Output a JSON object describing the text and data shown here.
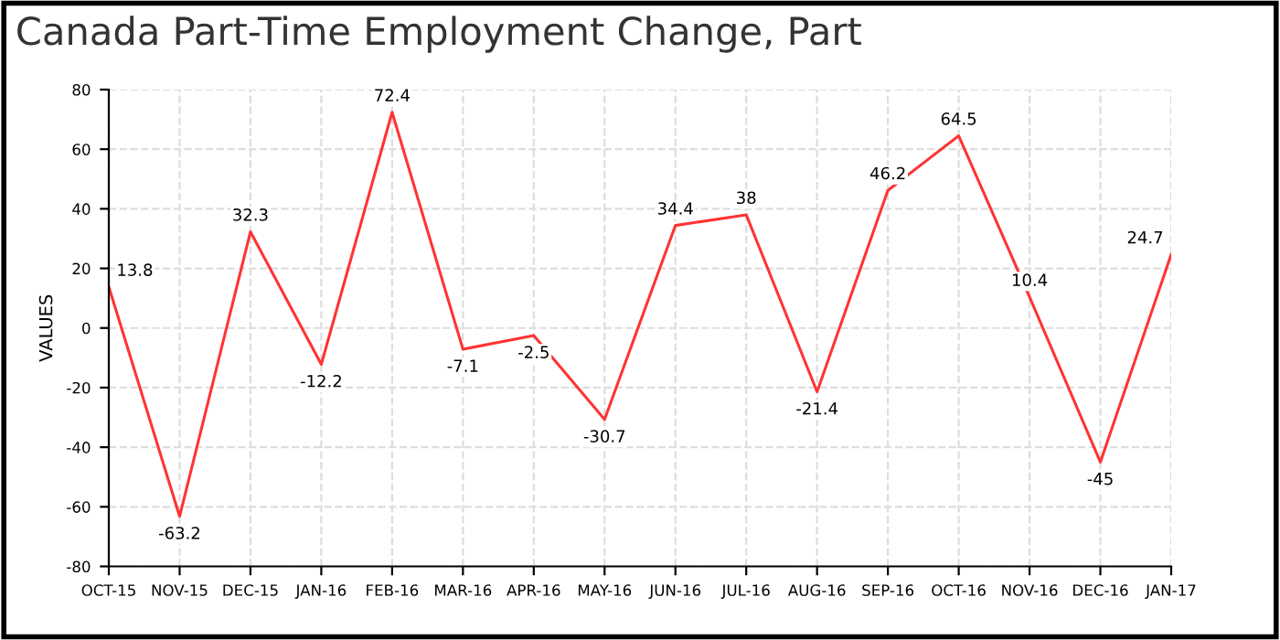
{
  "chart_data": {
    "type": "line",
    "title": "Canada Part-Time Employment Change, Part",
    "ylabel": "VALUES",
    "categories": [
      "OCT-15",
      "NOV-15",
      "DEC-15",
      "JAN-16",
      "FEB-16",
      "MAR-16",
      "APR-16",
      "MAY-16",
      "JUN-16",
      "JUL-16",
      "AUG-16",
      "SEP-16",
      "OCT-16",
      "NOV-16",
      "DEC-16",
      "JAN-17"
    ],
    "series": [
      {
        "color": "#ff3333",
        "values": [
          13.8,
          -63.2,
          32.3,
          -12.2,
          72.4,
          -7.1,
          -2.5,
          -30.7,
          34.4,
          38,
          -21.4,
          46.2,
          64.5,
          10.4,
          -45,
          24.7
        ]
      }
    ],
    "ylim": [
      -80,
      80
    ],
    "yticks": [
      -80,
      -60,
      -40,
      -20,
      0,
      20,
      40,
      60,
      80
    ],
    "grid": true,
    "data_labels": true,
    "marker": "none",
    "line_style": "solid",
    "legend": false
  }
}
